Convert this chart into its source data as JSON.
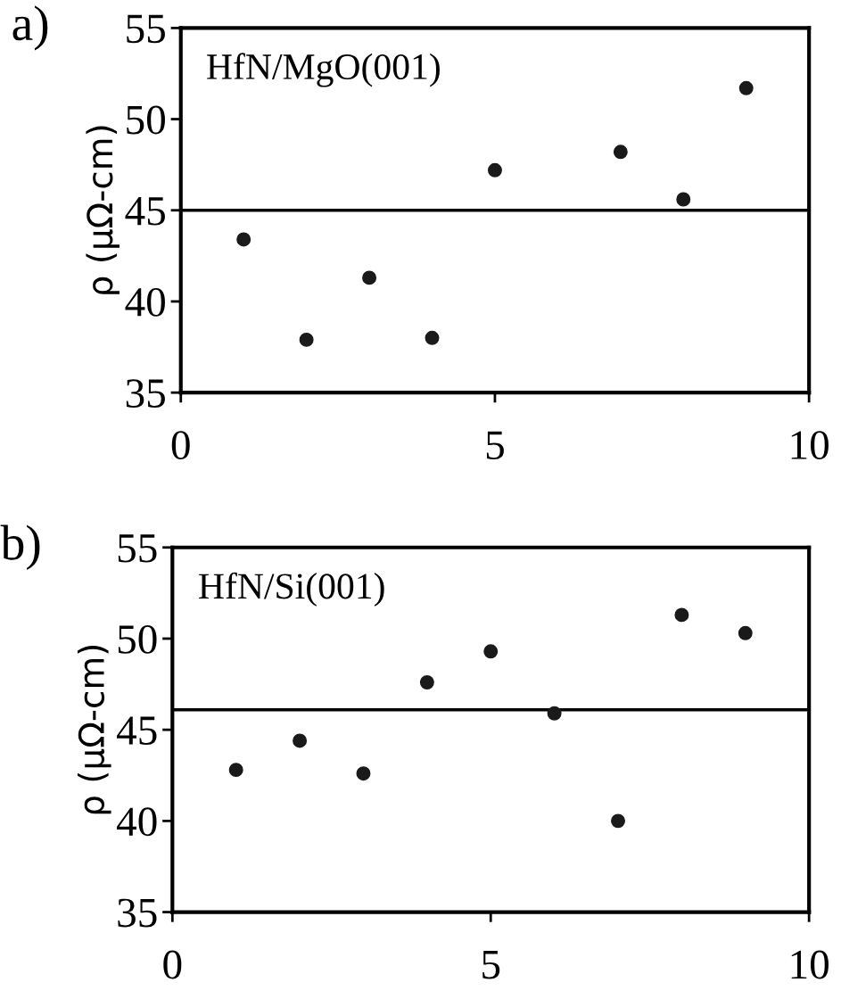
{
  "chart_data": [
    {
      "type": "scatter",
      "title": "a)",
      "ylabel": "ρ (μΩ-cm)",
      "annotations": [
        "HfN/MgO(001)"
      ],
      "xlim": [
        0,
        10
      ],
      "xticks": [
        0,
        5,
        10
      ],
      "ylim": [
        35,
        55
      ],
      "yticks": [
        35,
        40,
        45,
        50,
        55
      ],
      "grid": false,
      "legend": false,
      "marker": "circle",
      "series": [
        {
          "color": "#1a1a1a",
          "x": [
            1,
            2,
            3,
            4,
            5,
            7,
            8,
            9
          ],
          "values": [
            43.4,
            37.9,
            41.3,
            38.0,
            47.2,
            48.2,
            45.6,
            51.7
          ]
        }
      ],
      "ref_lines": [
        {
          "axis": "y",
          "value": 45.0,
          "color": "#000000",
          "line_style": "solid"
        }
      ]
    },
    {
      "type": "scatter",
      "title": "b)",
      "ylabel": "ρ (μΩ-cm)",
      "annotations": [
        "HfN/Si(001)"
      ],
      "xlim": [
        0,
        10
      ],
      "xticks": [
        0,
        5,
        10
      ],
      "ylim": [
        35,
        55
      ],
      "yticks": [
        35,
        40,
        45,
        50,
        55
      ],
      "grid": false,
      "legend": false,
      "marker": "circle",
      "series": [
        {
          "color": "#1a1a1a",
          "x": [
            1,
            2,
            3,
            4,
            5,
            6,
            7,
            8,
            9
          ],
          "values": [
            42.8,
            44.4,
            42.6,
            47.6,
            49.3,
            45.9,
            40.0,
            51.3,
            50.3
          ]
        }
      ],
      "ref_lines": [
        {
          "axis": "y",
          "value": 46.1,
          "color": "#000000",
          "line_style": "solid"
        }
      ]
    }
  ]
}
